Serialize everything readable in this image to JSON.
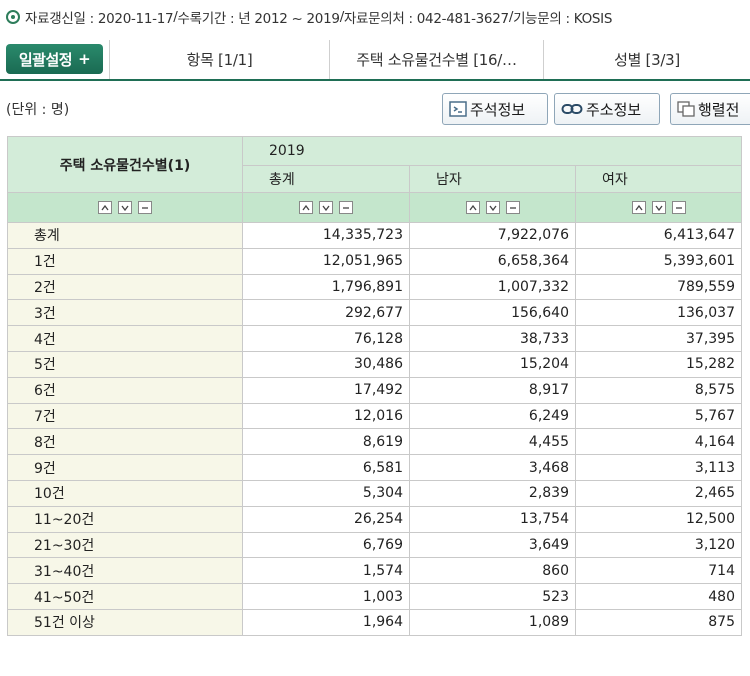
{
  "info": {
    "updated": "자료갱신일 : 2020-11-17",
    "period": "수록기간 : 년 2012 ~ 2019",
    "contact": "자료문의처 : 042-481-3627",
    "function": "기능문의 : KOSIS",
    "sep": " / "
  },
  "toolbar": {
    "bulk_label": "일괄설정",
    "bulk_plus": "+",
    "tabs": [
      {
        "label": "항목 [1/1]"
      },
      {
        "label": "주택 소유물건수별 [16/…"
      },
      {
        "label": "성별 [3/3]"
      }
    ]
  },
  "unit": "(단위 : 명)",
  "buttons": {
    "note": "주석정보",
    "source": "주소정보",
    "pivot": "행렬전"
  },
  "table": {
    "row_header": "주택 소유물건수별(1)",
    "year": "2019",
    "columns": [
      "총계",
      "남자",
      "여자"
    ],
    "rows": [
      {
        "label": "총계",
        "values": [
          "14,335,723",
          "7,922,076",
          "6,413,647"
        ]
      },
      {
        "label": "1건",
        "values": [
          "12,051,965",
          "6,658,364",
          "5,393,601"
        ]
      },
      {
        "label": "2건",
        "values": [
          "1,796,891",
          "1,007,332",
          "789,559"
        ]
      },
      {
        "label": "3건",
        "values": [
          "292,677",
          "156,640",
          "136,037"
        ]
      },
      {
        "label": "4건",
        "values": [
          "76,128",
          "38,733",
          "37,395"
        ]
      },
      {
        "label": "5건",
        "values": [
          "30,486",
          "15,204",
          "15,282"
        ]
      },
      {
        "label": "6건",
        "values": [
          "17,492",
          "8,917",
          "8,575"
        ]
      },
      {
        "label": "7건",
        "values": [
          "12,016",
          "6,249",
          "5,767"
        ]
      },
      {
        "label": "8건",
        "values": [
          "8,619",
          "4,455",
          "4,164"
        ]
      },
      {
        "label": "9건",
        "values": [
          "6,581",
          "3,468",
          "3,113"
        ]
      },
      {
        "label": "10건",
        "values": [
          "5,304",
          "2,839",
          "2,465"
        ]
      },
      {
        "label": "11~20건",
        "values": [
          "26,254",
          "13,754",
          "12,500"
        ]
      },
      {
        "label": "21~30건",
        "values": [
          "6,769",
          "3,649",
          "3,120"
        ]
      },
      {
        "label": "31~40건",
        "values": [
          "1,574",
          "860",
          "714"
        ]
      },
      {
        "label": "41~50건",
        "values": [
          "1,003",
          "523",
          "480"
        ]
      },
      {
        "label": "51건 이상",
        "values": [
          "1,964",
          "1,089",
          "875"
        ]
      }
    ]
  },
  "colors": {
    "accent": "#1f6e55",
    "header_bg": "#d3ecd9",
    "row_label_bg": "#f7f7e8"
  }
}
